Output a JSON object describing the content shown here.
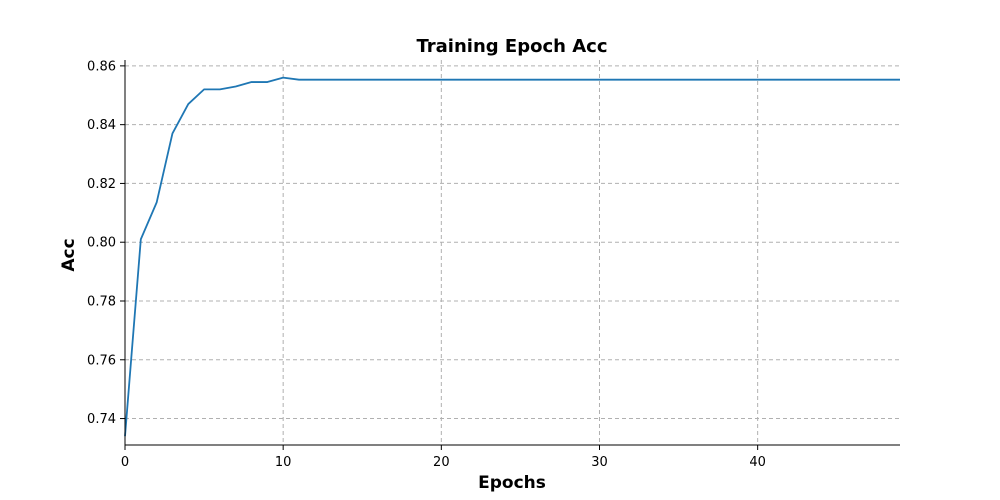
{
  "chart_data": {
    "type": "line",
    "title": "Training Epoch Acc",
    "xlabel": "Epochs",
    "ylabel": "Acc",
    "xlim": [
      0,
      49
    ],
    "ylim": [
      0.731,
      0.862
    ],
    "xticks": [
      0,
      10,
      20,
      30,
      40
    ],
    "yticks": [
      0.74,
      0.76,
      0.78,
      0.8,
      0.82,
      0.84,
      0.86
    ],
    "xtick_labels": [
      "0",
      "10",
      "20",
      "30",
      "40"
    ],
    "ytick_labels": [
      "0.74",
      "0.76",
      "0.78",
      "0.80",
      "0.82",
      "0.84",
      "0.86"
    ],
    "grid": true,
    "series": [
      {
        "color": "#1f77b4",
        "x": [
          0,
          1,
          2,
          3,
          4,
          5,
          6,
          7,
          8,
          9,
          10,
          11,
          12,
          13,
          14,
          15,
          16,
          17,
          18,
          19,
          20,
          21,
          22,
          23,
          24,
          25,
          26,
          27,
          28,
          29,
          30,
          31,
          32,
          33,
          34,
          35,
          36,
          37,
          38,
          39,
          40,
          41,
          42,
          43,
          44,
          45,
          46,
          47,
          48,
          49
        ],
        "y": [
          0.734,
          0.801,
          0.8135,
          0.837,
          0.847,
          0.852,
          0.852,
          0.853,
          0.8545,
          0.8545,
          0.856,
          0.8553,
          0.8553,
          0.8553,
          0.8553,
          0.8553,
          0.8553,
          0.8553,
          0.8553,
          0.8553,
          0.8553,
          0.8553,
          0.8553,
          0.8553,
          0.8553,
          0.8553,
          0.8553,
          0.8553,
          0.8553,
          0.8553,
          0.8553,
          0.8553,
          0.8553,
          0.8553,
          0.8553,
          0.8553,
          0.8553,
          0.8553,
          0.8553,
          0.8553,
          0.8553,
          0.8553,
          0.8553,
          0.8553,
          0.8553,
          0.8553,
          0.8553,
          0.8553,
          0.8553,
          0.8553
        ]
      }
    ]
  }
}
